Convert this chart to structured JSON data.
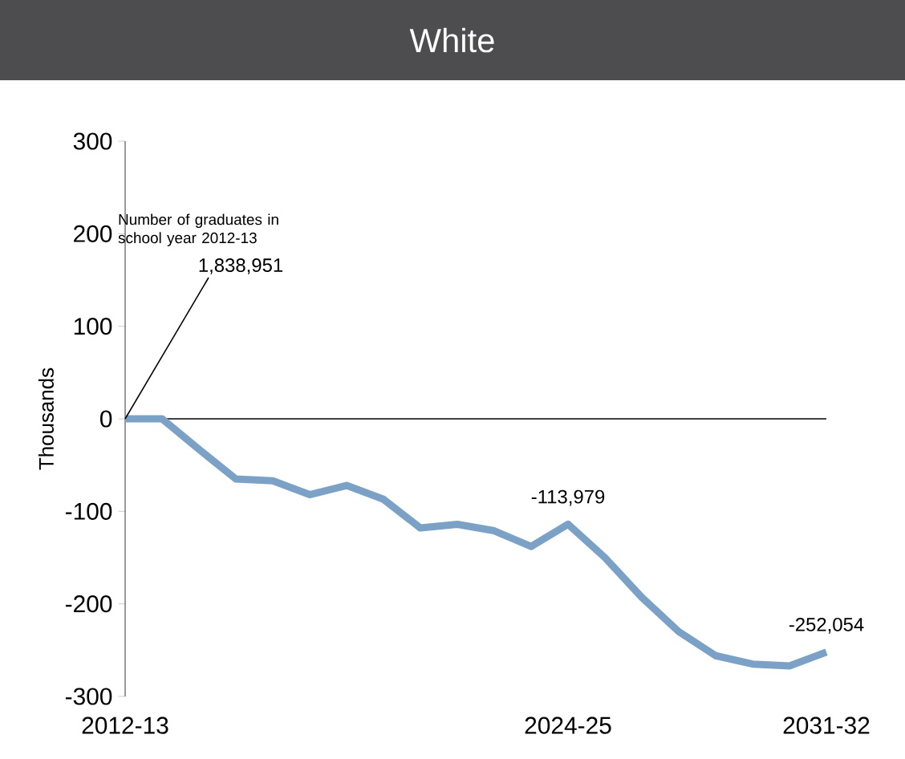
{
  "chart_data": {
    "type": "line",
    "title": "White",
    "ylabel": "Thousands",
    "categories": [
      "2012-13",
      null,
      null,
      null,
      null,
      null,
      null,
      null,
      null,
      null,
      null,
      null,
      "2024-25",
      null,
      null,
      null,
      null,
      null,
      null,
      "2031-32"
    ],
    "values": [
      0,
      0,
      -33,
      -65,
      -67,
      -82,
      -72,
      -87,
      -118,
      -114,
      -121,
      -138,
      -113.979,
      -150,
      -193,
      -230,
      -256,
      -265,
      -267,
      -252.054
    ],
    "color": "#7ba2c6",
    "ylim": [
      -300,
      300
    ],
    "yticks": [
      -300,
      -200,
      -100,
      0,
      100,
      200,
      300
    ],
    "ref_lines": [
      {
        "axis": "y",
        "value": 0,
        "color": "#000000"
      }
    ],
    "annotations": [
      "Number of graduates in school year 2012-13",
      {
        "text": "1,838,951",
        "x": "2012-13",
        "y": 0
      },
      {
        "text": "-113,979",
        "x": "2024-25",
        "y": -113.979
      },
      {
        "text": "-252,054",
        "x": "2031-32",
        "y": -252.054
      }
    ]
  }
}
